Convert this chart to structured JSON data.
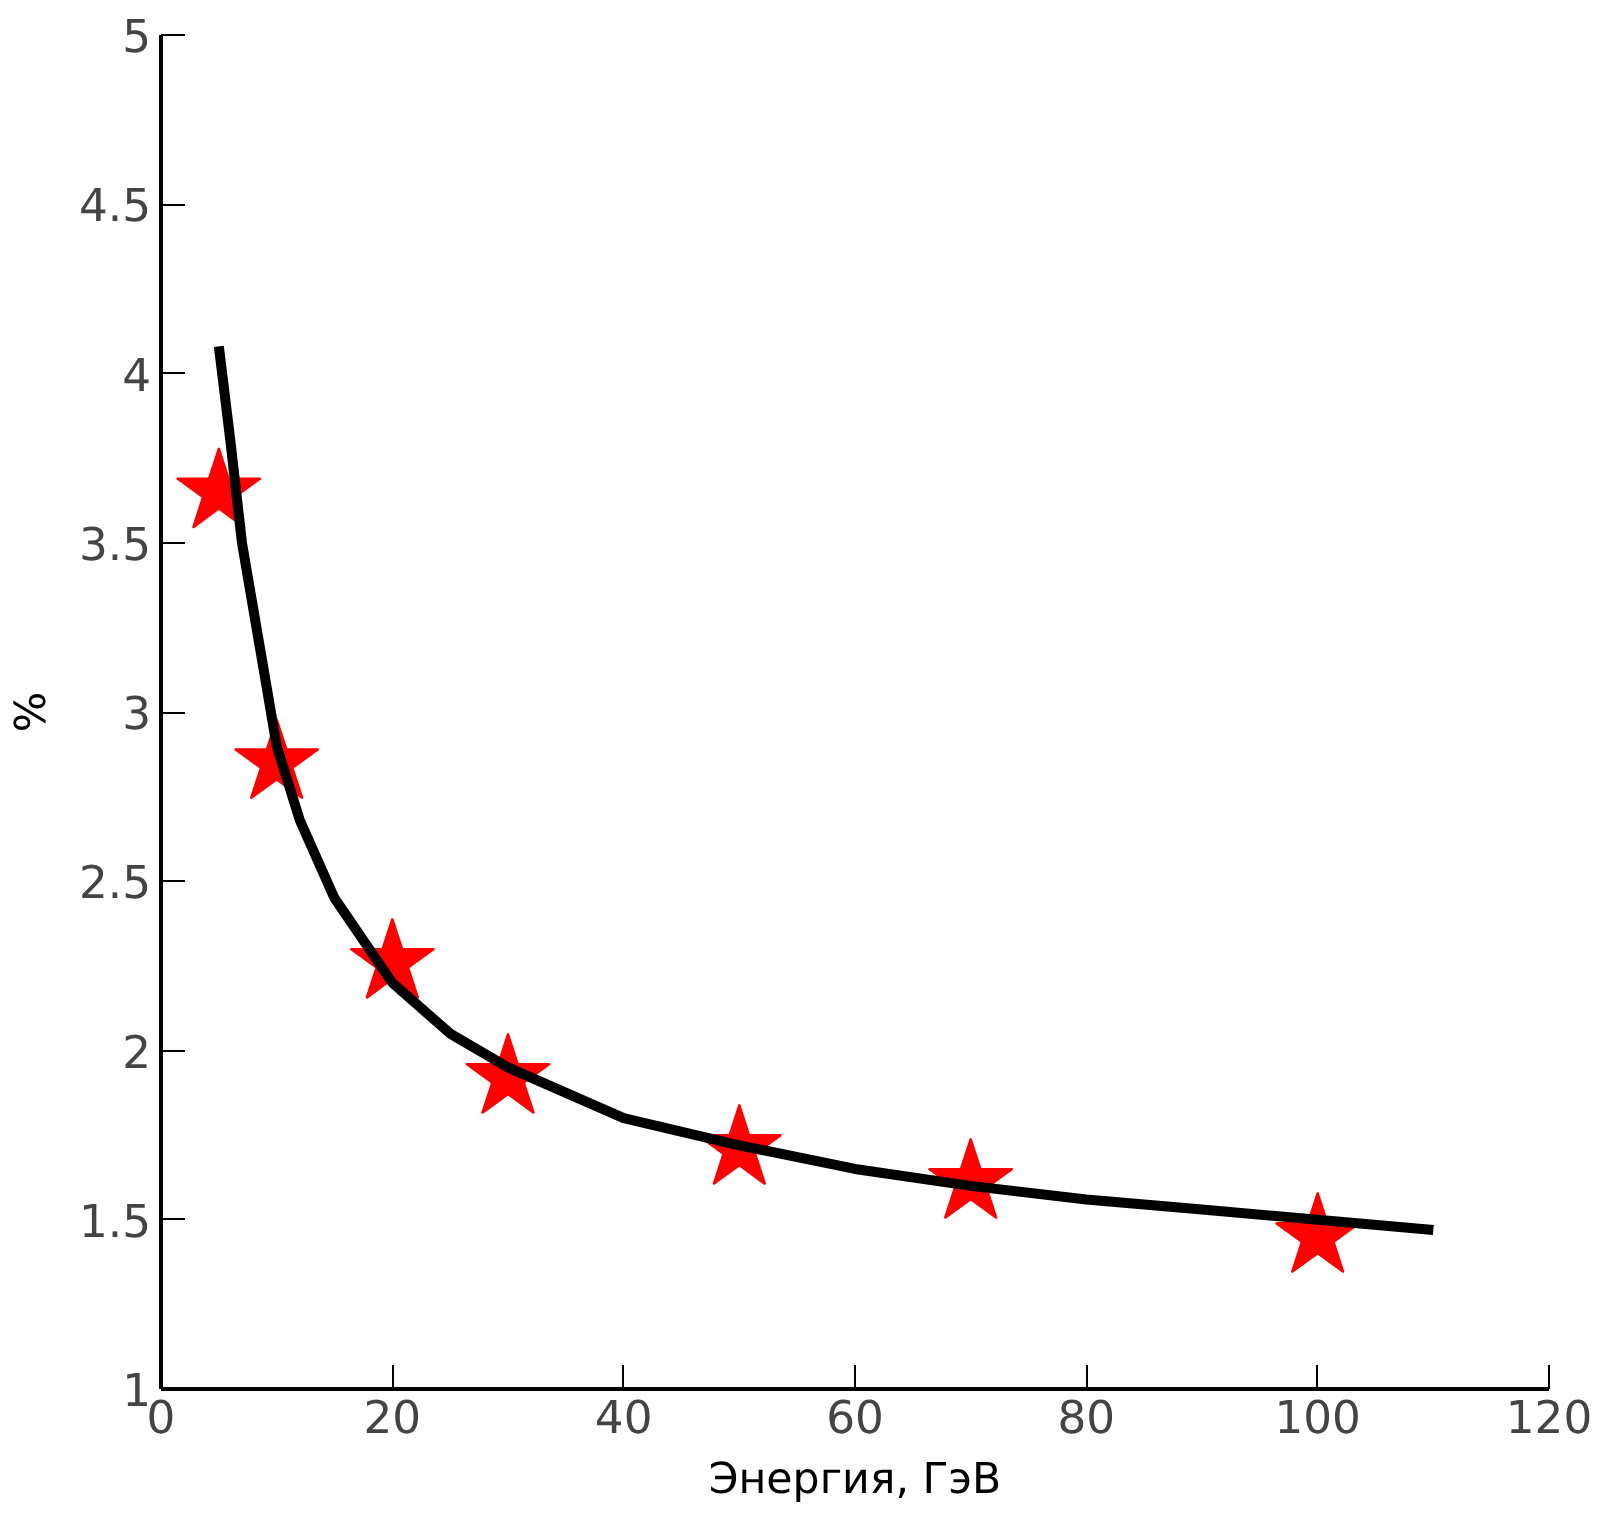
{
  "chart_data": {
    "type": "scatter",
    "xlabel": "Энергия, ГэВ",
    "ylabel": "%",
    "xlim": [
      0,
      120
    ],
    "ylim": [
      1,
      5
    ],
    "xticks": [
      0,
      20,
      40,
      60,
      80,
      100,
      120
    ],
    "yticks": [
      1,
      1.5,
      2,
      2.5,
      3,
      3.5,
      4,
      4.5,
      5
    ],
    "grid": false,
    "series": [
      {
        "type": "scatter",
        "marker": "star",
        "color": "#ff0000",
        "x": [
          5,
          10,
          20,
          30,
          50,
          70,
          100
        ],
        "values": [
          3.65,
          2.85,
          2.26,
          1.92,
          1.71,
          1.61,
          1.45
        ]
      },
      {
        "type": "line",
        "marker": "none",
        "line_style": "solid",
        "color": "#000000",
        "x": [
          5,
          6,
          7,
          8,
          10,
          12,
          15,
          20,
          25,
          30,
          40,
          50,
          60,
          70,
          80,
          90,
          100,
          110
        ],
        "values": [
          4.08,
          3.8,
          3.5,
          3.3,
          2.9,
          2.68,
          2.45,
          2.2,
          2.05,
          1.95,
          1.8,
          1.72,
          1.65,
          1.6,
          1.56,
          1.53,
          1.5,
          1.47
        ]
      }
    ]
  }
}
